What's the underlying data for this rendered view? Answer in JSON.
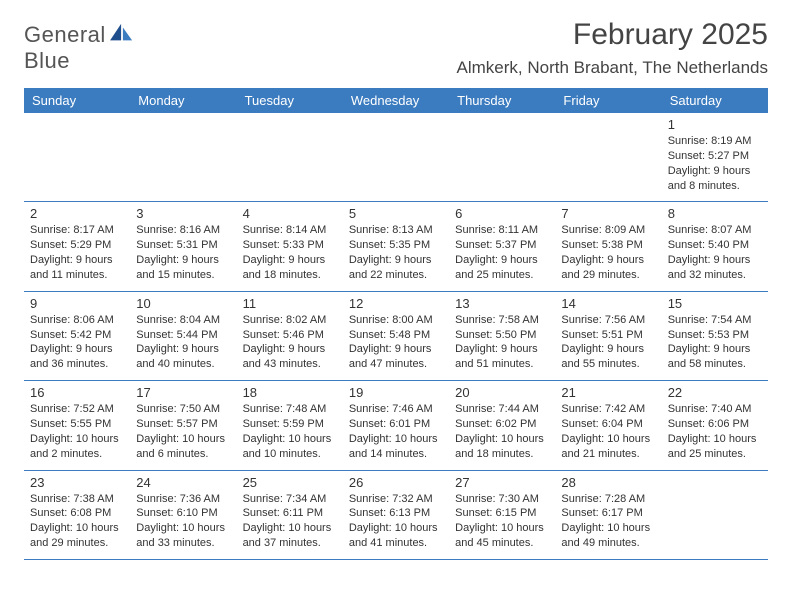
{
  "brand": {
    "word1": "General",
    "word2": "Blue"
  },
  "title": "February 2025",
  "location": "Almkerk, North Brabant, The Netherlands",
  "colors": {
    "header_bg": "#3b7bbf",
    "header_text": "#ffffff",
    "rule": "#3b7bbf",
    "body_text": "#333333",
    "title_text": "#444444",
    "background": "#ffffff"
  },
  "day_labels": [
    "Sunday",
    "Monday",
    "Tuesday",
    "Wednesday",
    "Thursday",
    "Friday",
    "Saturday"
  ],
  "weeks": [
    [
      null,
      null,
      null,
      null,
      null,
      null,
      {
        "d": "1",
        "sr": "Sunrise: 8:19 AM",
        "ss": "Sunset: 5:27 PM",
        "dl": "Daylight: 9 hours and 8 minutes."
      }
    ],
    [
      {
        "d": "2",
        "sr": "Sunrise: 8:17 AM",
        "ss": "Sunset: 5:29 PM",
        "dl": "Daylight: 9 hours and 11 minutes."
      },
      {
        "d": "3",
        "sr": "Sunrise: 8:16 AM",
        "ss": "Sunset: 5:31 PM",
        "dl": "Daylight: 9 hours and 15 minutes."
      },
      {
        "d": "4",
        "sr": "Sunrise: 8:14 AM",
        "ss": "Sunset: 5:33 PM",
        "dl": "Daylight: 9 hours and 18 minutes."
      },
      {
        "d": "5",
        "sr": "Sunrise: 8:13 AM",
        "ss": "Sunset: 5:35 PM",
        "dl": "Daylight: 9 hours and 22 minutes."
      },
      {
        "d": "6",
        "sr": "Sunrise: 8:11 AM",
        "ss": "Sunset: 5:37 PM",
        "dl": "Daylight: 9 hours and 25 minutes."
      },
      {
        "d": "7",
        "sr": "Sunrise: 8:09 AM",
        "ss": "Sunset: 5:38 PM",
        "dl": "Daylight: 9 hours and 29 minutes."
      },
      {
        "d": "8",
        "sr": "Sunrise: 8:07 AM",
        "ss": "Sunset: 5:40 PM",
        "dl": "Daylight: 9 hours and 32 minutes."
      }
    ],
    [
      {
        "d": "9",
        "sr": "Sunrise: 8:06 AM",
        "ss": "Sunset: 5:42 PM",
        "dl": "Daylight: 9 hours and 36 minutes."
      },
      {
        "d": "10",
        "sr": "Sunrise: 8:04 AM",
        "ss": "Sunset: 5:44 PM",
        "dl": "Daylight: 9 hours and 40 minutes."
      },
      {
        "d": "11",
        "sr": "Sunrise: 8:02 AM",
        "ss": "Sunset: 5:46 PM",
        "dl": "Daylight: 9 hours and 43 minutes."
      },
      {
        "d": "12",
        "sr": "Sunrise: 8:00 AM",
        "ss": "Sunset: 5:48 PM",
        "dl": "Daylight: 9 hours and 47 minutes."
      },
      {
        "d": "13",
        "sr": "Sunrise: 7:58 AM",
        "ss": "Sunset: 5:50 PM",
        "dl": "Daylight: 9 hours and 51 minutes."
      },
      {
        "d": "14",
        "sr": "Sunrise: 7:56 AM",
        "ss": "Sunset: 5:51 PM",
        "dl": "Daylight: 9 hours and 55 minutes."
      },
      {
        "d": "15",
        "sr": "Sunrise: 7:54 AM",
        "ss": "Sunset: 5:53 PM",
        "dl": "Daylight: 9 hours and 58 minutes."
      }
    ],
    [
      {
        "d": "16",
        "sr": "Sunrise: 7:52 AM",
        "ss": "Sunset: 5:55 PM",
        "dl": "Daylight: 10 hours and 2 minutes."
      },
      {
        "d": "17",
        "sr": "Sunrise: 7:50 AM",
        "ss": "Sunset: 5:57 PM",
        "dl": "Daylight: 10 hours and 6 minutes."
      },
      {
        "d": "18",
        "sr": "Sunrise: 7:48 AM",
        "ss": "Sunset: 5:59 PM",
        "dl": "Daylight: 10 hours and 10 minutes."
      },
      {
        "d": "19",
        "sr": "Sunrise: 7:46 AM",
        "ss": "Sunset: 6:01 PM",
        "dl": "Daylight: 10 hours and 14 minutes."
      },
      {
        "d": "20",
        "sr": "Sunrise: 7:44 AM",
        "ss": "Sunset: 6:02 PM",
        "dl": "Daylight: 10 hours and 18 minutes."
      },
      {
        "d": "21",
        "sr": "Sunrise: 7:42 AM",
        "ss": "Sunset: 6:04 PM",
        "dl": "Daylight: 10 hours and 21 minutes."
      },
      {
        "d": "22",
        "sr": "Sunrise: 7:40 AM",
        "ss": "Sunset: 6:06 PM",
        "dl": "Daylight: 10 hours and 25 minutes."
      }
    ],
    [
      {
        "d": "23",
        "sr": "Sunrise: 7:38 AM",
        "ss": "Sunset: 6:08 PM",
        "dl": "Daylight: 10 hours and 29 minutes."
      },
      {
        "d": "24",
        "sr": "Sunrise: 7:36 AM",
        "ss": "Sunset: 6:10 PM",
        "dl": "Daylight: 10 hours and 33 minutes."
      },
      {
        "d": "25",
        "sr": "Sunrise: 7:34 AM",
        "ss": "Sunset: 6:11 PM",
        "dl": "Daylight: 10 hours and 37 minutes."
      },
      {
        "d": "26",
        "sr": "Sunrise: 7:32 AM",
        "ss": "Sunset: 6:13 PM",
        "dl": "Daylight: 10 hours and 41 minutes."
      },
      {
        "d": "27",
        "sr": "Sunrise: 7:30 AM",
        "ss": "Sunset: 6:15 PM",
        "dl": "Daylight: 10 hours and 45 minutes."
      },
      {
        "d": "28",
        "sr": "Sunrise: 7:28 AM",
        "ss": "Sunset: 6:17 PM",
        "dl": "Daylight: 10 hours and 49 minutes."
      },
      null
    ]
  ]
}
